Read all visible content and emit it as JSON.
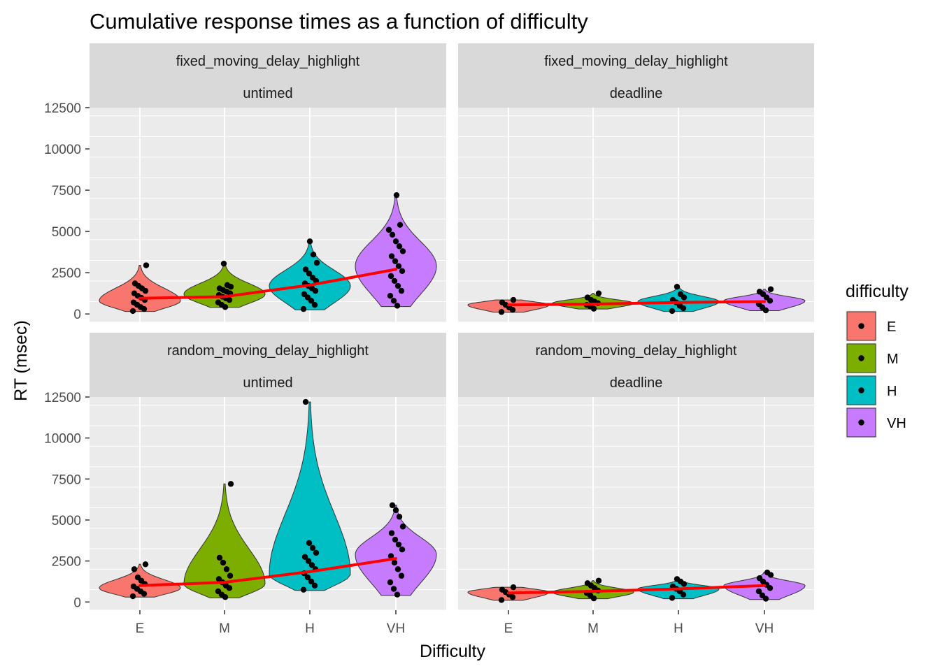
{
  "chart_data": {
    "type": "violin",
    "title": "Cumulative response times as a function of difficulty",
    "xlabel": "Difficulty",
    "ylabel": "RT (msec)",
    "categories": [
      "E",
      "M",
      "H",
      "VH"
    ],
    "yticks": [
      0,
      2500,
      5000,
      7500,
      10000,
      12500
    ],
    "ylim": [
      -500,
      12500
    ],
    "grid": true,
    "legend": {
      "title": "difficulty",
      "placement": "right",
      "entries": [
        {
          "label": "E",
          "color": "#F8766D"
        },
        {
          "label": "M",
          "color": "#7CAE00"
        },
        {
          "label": "H",
          "color": "#00BFC4"
        },
        {
          "label": "VH",
          "color": "#C77CFF"
        }
      ]
    },
    "trend_color": "#FF0000",
    "panels": [
      {
        "strip_top": "fixed_moving_delay_highlight",
        "strip_bottom": "untimed",
        "means": [
          950,
          1050,
          1750,
          2700
        ],
        "series": [
          {
            "category": "E",
            "min": 150,
            "max": 2950,
            "peak": 800,
            "points": [
              180,
              300,
              420,
              560,
              700,
              850,
              980,
              1100,
              1250,
              1400,
              1550,
              1700,
              1850,
              2950
            ]
          },
          {
            "category": "M",
            "min": 400,
            "max": 3050,
            "peak": 1200,
            "points": [
              420,
              550,
              700,
              850,
              950,
              1050,
              1150,
              1250,
              1350,
              1450,
              1550,
              1650,
              1750,
              3050
            ]
          },
          {
            "category": "H",
            "min": 250,
            "max": 4400,
            "peak": 1700,
            "points": [
              300,
              550,
              800,
              1000,
              1200,
              1400,
              1550,
              1700,
              1850,
              2000,
              2200,
              2450,
              2700,
              3100,
              3600,
              4400
            ]
          },
          {
            "category": "VH",
            "min": 450,
            "max": 7200,
            "peak": 2900,
            "points": [
              500,
              800,
              1100,
              1400,
              1700,
              2000,
              2300,
              2600,
              2900,
              3200,
              3500,
              3800,
              4100,
              4400,
              4800,
              5100,
              5400,
              7200
            ]
          }
        ]
      },
      {
        "strip_top": "fixed_moving_delay_highlight",
        "strip_bottom": "deadline",
        "means": [
          550,
          600,
          700,
          750
        ],
        "series": [
          {
            "category": "E",
            "min": 100,
            "max": 850,
            "peak": 550,
            "points": [
              120,
              250,
              400,
              550,
              700,
              850
            ]
          },
          {
            "category": "M",
            "min": 300,
            "max": 1250,
            "peak": 650,
            "points": [
              320,
              450,
              550,
              650,
              750,
              850,
              1000,
              1250
            ]
          },
          {
            "category": "H",
            "min": 150,
            "max": 1650,
            "peak": 750,
            "points": [
              180,
              350,
              500,
              700,
              850,
              1000,
              1200,
              1650
            ]
          },
          {
            "category": "VH",
            "min": 200,
            "max": 1500,
            "peak": 800,
            "points": [
              220,
              400,
              600,
              800,
              1000,
              1200,
              1350,
              1500
            ]
          }
        ]
      },
      {
        "strip_top": "random_moving_delay_highlight",
        "strip_bottom": "untimed",
        "means": [
          1000,
          1200,
          1850,
          2650
        ],
        "series": [
          {
            "category": "E",
            "min": 300,
            "max": 2300,
            "peak": 850,
            "points": [
              350,
              500,
              650,
              800,
              950,
              1100,
              1300,
              1500,
              2000,
              2300
            ]
          },
          {
            "category": "M",
            "min": 250,
            "max": 7200,
            "peak": 1100,
            "points": [
              300,
              450,
              650,
              850,
              1000,
              1200,
              1400,
              1600,
              2000,
              2400,
              2700,
              7200
            ]
          },
          {
            "category": "H",
            "min": 700,
            "max": 12200,
            "peak": 1700,
            "points": [
              750,
              1000,
              1250,
              1500,
              1750,
              2000,
              2250,
              2500,
              2750,
              3000,
              3300,
              3600,
              12200
            ]
          },
          {
            "category": "VH",
            "min": 400,
            "max": 5900,
            "peak": 2900,
            "points": [
              450,
              800,
              1200,
              1600,
              2000,
              2400,
              2800,
              3200,
              3500,
              3800,
              4200,
              4600,
              5200,
              5600,
              5900
            ]
          }
        ]
      },
      {
        "strip_top": "random_moving_delay_highlight",
        "strip_bottom": "deadline",
        "means": [
          550,
          650,
          800,
          1000
        ],
        "series": [
          {
            "category": "E",
            "min": 100,
            "max": 900,
            "peak": 600,
            "points": [
              120,
              300,
              450,
              600,
              750,
              900
            ]
          },
          {
            "category": "M",
            "min": 200,
            "max": 1300,
            "peak": 600,
            "points": [
              220,
              400,
              550,
              700,
              850,
              1000,
              1150,
              1300
            ]
          },
          {
            "category": "H",
            "min": 200,
            "max": 1400,
            "peak": 800,
            "points": [
              250,
              450,
              650,
              800,
              950,
              1100,
              1250,
              1400
            ]
          },
          {
            "category": "VH",
            "min": 150,
            "max": 1800,
            "peak": 1000,
            "points": [
              200,
              400,
              650,
              850,
              1050,
              1250,
              1450,
              1650,
              1800
            ]
          }
        ]
      }
    ]
  }
}
